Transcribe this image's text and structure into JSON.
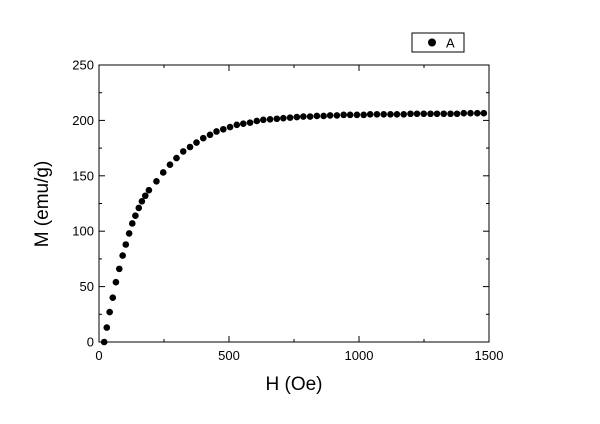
{
  "chart_data": {
    "type": "scatter",
    "xlabel": "H (Oe)",
    "ylabel": "M (emu/g)",
    "xlim": [
      0,
      1500
    ],
    "ylim": [
      0,
      250
    ],
    "xticks": [
      "0",
      "500",
      "1000",
      "1500"
    ],
    "yticks": [
      "0",
      "50",
      "100",
      "150",
      "200",
      "250"
    ],
    "grid": false,
    "legend": {
      "placement": "top-right",
      "label": "A"
    },
    "marker_color": "#000000",
    "series": [
      {
        "name": "A",
        "x": [
          20,
          30,
          41,
          53,
          65,
          78,
          91,
          103,
          116,
          128,
          140,
          153,
          165,
          178,
          192,
          221,
          247,
          273,
          298,
          324,
          350,
          375,
          401,
          427,
          452,
          478,
          504,
          530,
          555,
          581,
          607,
          632,
          658,
          684,
          709,
          735,
          761,
          786,
          812,
          838,
          864,
          889,
          915,
          941,
          966,
          992,
          1018,
          1043,
          1069,
          1095,
          1121,
          1146,
          1172,
          1198,
          1223,
          1249,
          1275,
          1300,
          1326,
          1352,
          1377,
          1403,
          1429,
          1455,
          1480
        ],
        "y": [
          0,
          13,
          27,
          40,
          54,
          66,
          78,
          88,
          98,
          107,
          114,
          121,
          127,
          132,
          137,
          145,
          153,
          160,
          166,
          172,
          176,
          180,
          184,
          187,
          190,
          192,
          194,
          196,
          197,
          198,
          199.5,
          200.5,
          201,
          201.5,
          202,
          202.5,
          203,
          203.5,
          203.5,
          204,
          204,
          204.5,
          204.5,
          205,
          205,
          205,
          205,
          205.5,
          205.5,
          205.5,
          205.5,
          205.5,
          205.5,
          206,
          206,
          206,
          206,
          206,
          206,
          206,
          206,
          206.5,
          206.5,
          206.5,
          206.5
        ]
      }
    ]
  }
}
